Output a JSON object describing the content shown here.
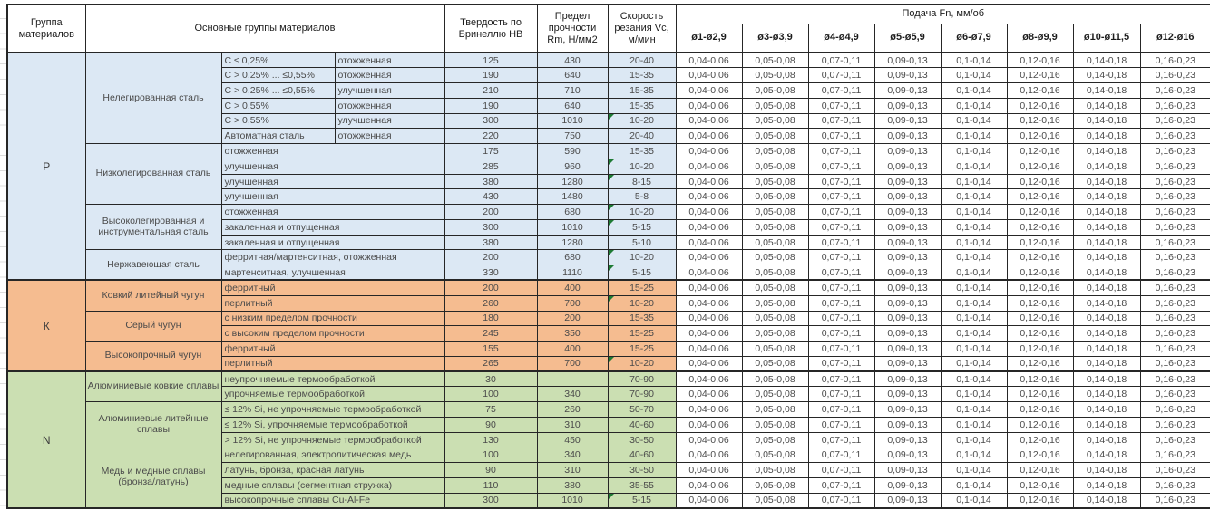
{
  "chart_data": {
    "type": "table",
    "header": {
      "group": "Группа материалов",
      "main": "Основные группы материалов",
      "hb": "Твердость по Бринеллю HB",
      "rm": "Предел прочности Rm, Н/мм2",
      "vc": "Скорость резания Vc, м/мин",
      "feed": "Подача Fn, мм/об",
      "feed_columns": [
        "ø1-ø2,9",
        "ø3-ø3,9",
        "ø4-ø4,9",
        "ø5-ø5,9",
        "ø6-ø7,9",
        "ø8-ø9,9",
        "ø10-ø11,5",
        "ø12-ø16"
      ]
    },
    "feed_values_per_row": [
      "0,04-0,06",
      "0,05-0,08",
      "0,07-0,11",
      "0,09-0,13",
      "0,1-0,14",
      "0,12-0,16",
      "0,14-0,18",
      "0,16-0,23"
    ],
    "sections": [
      {
        "letter": "Р",
        "color": "#dce8f4",
        "groups": [
          {
            "name": "Нелегированная сталь",
            "rows": [
              {
                "sub1": "C ≤ 0,25%",
                "sub2": "отожженная",
                "hb": "125",
                "rm": "430",
                "vc": "20-40",
                "flag": false
              },
              {
                "sub1": "C > 0,25% ... ≤0,55%",
                "sub2": "отожженная",
                "hb": "190",
                "rm": "640",
                "vc": "15-35",
                "flag": false
              },
              {
                "sub1": "C > 0,25% ... ≤0,55%",
                "sub2": "улучшенная",
                "hb": "210",
                "rm": "710",
                "vc": "15-35",
                "flag": false
              },
              {
                "sub1": "C > 0,55%",
                "sub2": "отожженная",
                "hb": "190",
                "rm": "640",
                "vc": "15-35",
                "flag": false
              },
              {
                "sub1": "C > 0,55%",
                "sub2": "улучшенная",
                "hb": "300",
                "rm": "1010",
                "vc": "10-20",
                "flag": true
              },
              {
                "sub1": "Автоматная сталь",
                "sub2": "отожженная",
                "hb": "220",
                "rm": "750",
                "vc": "20-40",
                "flag": false
              }
            ]
          },
          {
            "name": "Низколегированная сталь",
            "rows": [
              {
                "sub1": "отожженная",
                "hb": "175",
                "rm": "590",
                "vc": "15-35",
                "flag": false
              },
              {
                "sub1": "улучшенная",
                "hb": "285",
                "rm": "960",
                "vc": "10-20",
                "flag": true
              },
              {
                "sub1": "улучшенная",
                "hb": "380",
                "rm": "1280",
                "vc": "8-15",
                "flag": true
              },
              {
                "sub1": "улучшенная",
                "hb": "430",
                "rm": "1480",
                "vc": "5-8",
                "flag": false
              }
            ]
          },
          {
            "name": "Высоколегированная и инструментальная сталь",
            "rows": [
              {
                "sub1": "отожженная",
                "hb": "200",
                "rm": "680",
                "vc": "10-20",
                "flag": true
              },
              {
                "sub1": "закаленная и отпущенная",
                "hb": "300",
                "rm": "1010",
                "vc": "5-15",
                "flag": true
              },
              {
                "sub1": "закаленная и отпущенная",
                "hb": "380",
                "rm": "1280",
                "vc": "5-10",
                "flag": false
              }
            ]
          },
          {
            "name": "Нержавеющая сталь",
            "rows": [
              {
                "sub1": "ферритная/мартенситная, отожженная",
                "hb": "200",
                "rm": "680",
                "vc": "10-20",
                "flag": true
              },
              {
                "sub1": "мартенситная, улучшенная",
                "hb": "330",
                "rm": "1110",
                "vc": "5-15",
                "flag": true
              }
            ]
          }
        ]
      },
      {
        "letter": "К",
        "color": "#f5bc90",
        "groups": [
          {
            "name": "Ковкий литейный чугун",
            "rows": [
              {
                "sub1": "ферритный",
                "hb": "200",
                "rm": "400",
                "vc": "15-25",
                "flag": false
              },
              {
                "sub1": "перлитный",
                "hb": "260",
                "rm": "700",
                "vc": "10-20",
                "flag": true
              }
            ]
          },
          {
            "name": "Серый чугун",
            "rows": [
              {
                "sub1": "с низким пределом прочности",
                "hb": "180",
                "rm": "200",
                "vc": "15-35",
                "flag": false
              },
              {
                "sub1": "с высоким пределом прочности",
                "hb": "245",
                "rm": "350",
                "vc": "15-25",
                "flag": false
              }
            ]
          },
          {
            "name": "Высокопрочный чугун",
            "rows": [
              {
                "sub1": "ферритный",
                "hb": "155",
                "rm": "400",
                "vc": "15-25",
                "flag": false
              },
              {
                "sub1": "перлитный",
                "hb": "265",
                "rm": "700",
                "vc": "10-20",
                "flag": true
              }
            ]
          }
        ]
      },
      {
        "letter": "N",
        "color": "#cbdfb2",
        "groups": [
          {
            "name": "Алюминиевые ковкие сплавы",
            "rows": [
              {
                "sub1": "неупрочняемые термообработкой",
                "hb": "30",
                "rm": "",
                "vc": "70-90",
                "flag": false
              },
              {
                "sub1": "упрочняемые термообработкой",
                "hb": "100",
                "rm": "340",
                "vc": "70-90",
                "flag": false
              }
            ]
          },
          {
            "name": "Алюминиевые литейные сплавы",
            "rows": [
              {
                "sub1": "≤ 12% Si, не упрочняемые термообработкой",
                "hb": "75",
                "rm": "260",
                "vc": "50-70",
                "flag": false
              },
              {
                "sub1": "≤ 12% Si, упрочняемые термообработкой",
                "hb": "90",
                "rm": "310",
                "vc": "40-60",
                "flag": false
              },
              {
                "sub1": "> 12% Si, не упрочняемые термообработкой",
                "hb": "130",
                "rm": "450",
                "vc": "30-50",
                "flag": false
              }
            ]
          },
          {
            "name": "Медь и медные сплавы (бронза/латунь)",
            "rows": [
              {
                "sub1": "нелегированная, электролитическая медь",
                "hb": "100",
                "rm": "340",
                "vc": "40-60",
                "flag": false
              },
              {
                "sub1": "латунь, бронза, красная латунь",
                "hb": "90",
                "rm": "310",
                "vc": "30-50",
                "flag": false
              },
              {
                "sub1": "медные сплавы (сегментная стружка)",
                "hb": "110",
                "rm": "380",
                "vc": "35-55",
                "flag": false
              },
              {
                "sub1": "высокопрочные сплавы Cu-Al-Fe",
                "hb": "300",
                "rm": "1010",
                "vc": "5-15",
                "flag": true
              }
            ]
          }
        ]
      }
    ],
    "icons": {
      "comment_flag": "green-corner-triangle"
    },
    "colors": {
      "section_p": "#dce8f4",
      "section_k": "#f5bc90",
      "section_n": "#cbdfb2",
      "flag_green": "#1e7b34",
      "border": "#262626"
    }
  }
}
